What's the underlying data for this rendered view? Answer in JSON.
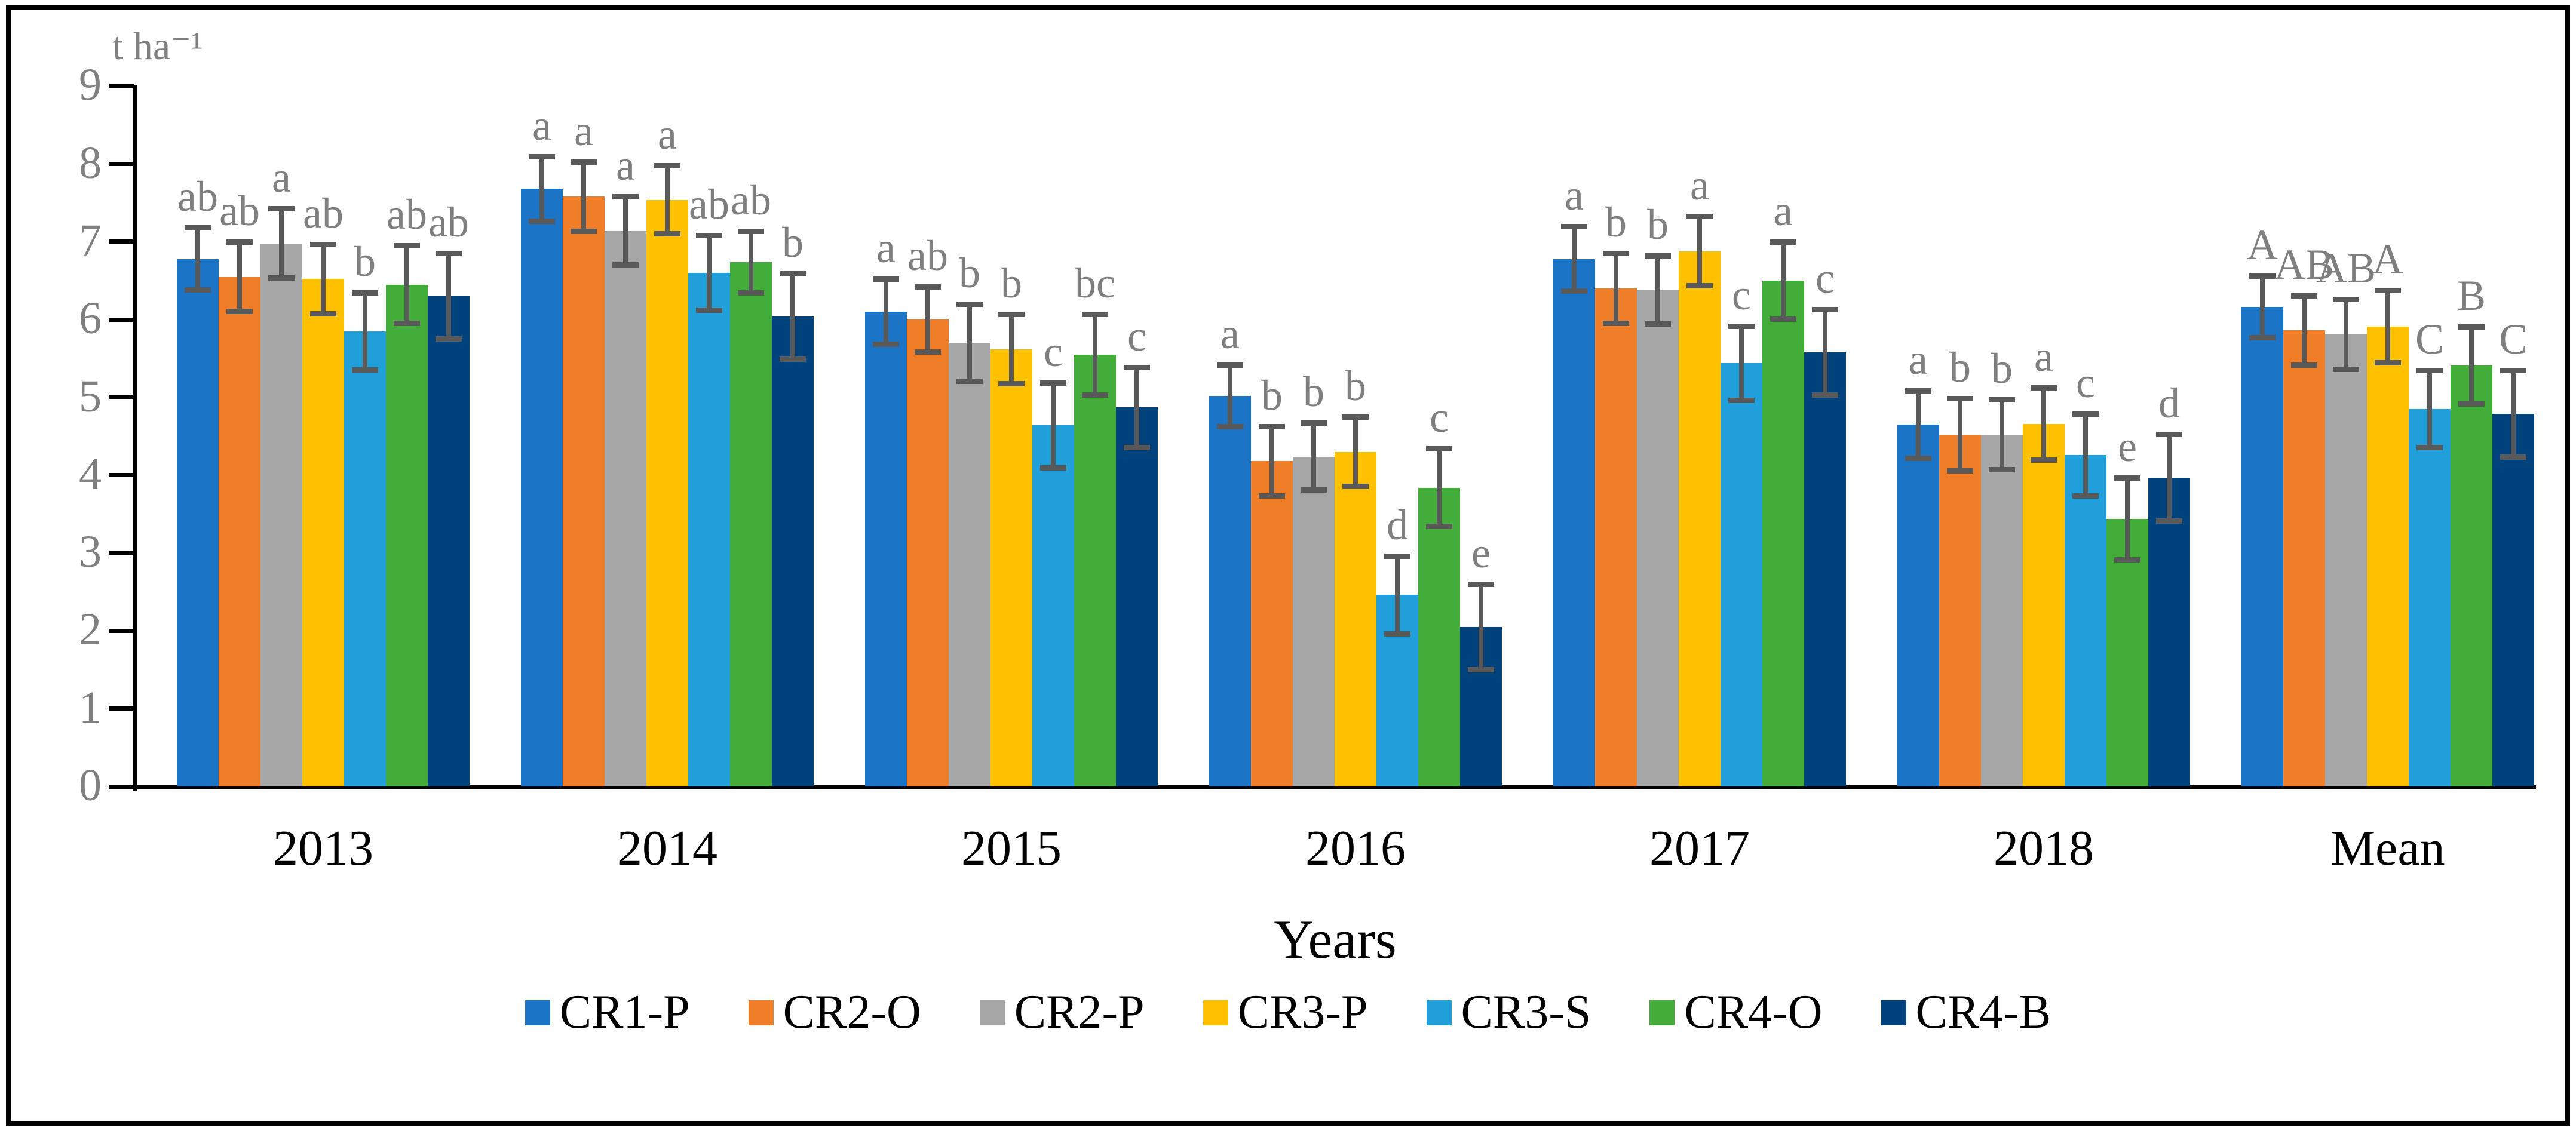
{
  "figure": {
    "y_unit_label": "t ha⁻¹",
    "x_axis_label": "Years"
  },
  "chart_data": {
    "type": "bar",
    "title": "",
    "ylabel": "t ha⁻¹",
    "xlabel": "Years",
    "ylim": [
      0,
      9
    ],
    "yticks": [
      0,
      1,
      2,
      3,
      4,
      5,
      6,
      7,
      8,
      9
    ],
    "grid": false,
    "legend_position": "bottom",
    "error_bar_color": "#595959",
    "sig_letter_color": "#7f7f7f",
    "categories": [
      "2013",
      "2014",
      "2015",
      "2016",
      "2017",
      "2018",
      "Mean"
    ],
    "series": [
      {
        "name": "CR1-P",
        "color": "#1b74c5",
        "values": [
          6.78,
          7.68,
          6.1,
          5.02,
          6.78,
          4.65,
          6.16
        ],
        "errors": [
          0.4,
          0.42,
          0.42,
          0.4,
          0.42,
          0.44,
          0.4
        ],
        "letters": [
          "ab",
          "a",
          "a",
          "a",
          "a",
          "a",
          "A"
        ]
      },
      {
        "name": "CR2-O",
        "color": "#f07d28",
        "values": [
          6.55,
          7.58,
          6.0,
          4.18,
          6.4,
          4.52,
          5.86
        ],
        "errors": [
          0.45,
          0.45,
          0.42,
          0.45,
          0.45,
          0.47,
          0.45
        ],
        "letters": [
          "ab",
          "a",
          "ab",
          "b",
          "b",
          "b",
          "AB"
        ]
      },
      {
        "name": "CR2-P",
        "color": "#a6a6a6",
        "values": [
          6.98,
          7.14,
          5.7,
          4.24,
          6.38,
          4.52,
          5.81
        ],
        "errors": [
          0.45,
          0.44,
          0.5,
          0.43,
          0.44,
          0.45,
          0.45
        ],
        "letters": [
          "a",
          "a",
          "b",
          "b",
          "b",
          "b",
          "AB"
        ]
      },
      {
        "name": "CR3-P",
        "color": "#ffc000",
        "values": [
          6.52,
          7.54,
          5.62,
          4.3,
          6.88,
          4.66,
          5.91
        ],
        "errors": [
          0.45,
          0.44,
          0.45,
          0.45,
          0.45,
          0.47,
          0.47
        ],
        "letters": [
          "ab",
          "a",
          "b",
          "b",
          "a",
          "a",
          "A"
        ]
      },
      {
        "name": "CR3-S",
        "color": "#219fda",
        "values": [
          5.85,
          6.6,
          4.64,
          2.46,
          5.44,
          4.26,
          4.85
        ],
        "errors": [
          0.5,
          0.48,
          0.55,
          0.5,
          0.48,
          0.53,
          0.5
        ],
        "letters": [
          "b",
          "ab",
          "c",
          "d",
          "c",
          "c",
          "C"
        ]
      },
      {
        "name": "CR4-O",
        "color": "#43ad3a",
        "values": [
          6.45,
          6.74,
          5.55,
          3.84,
          6.5,
          3.44,
          5.41
        ],
        "errors": [
          0.5,
          0.4,
          0.52,
          0.5,
          0.5,
          0.53,
          0.5
        ],
        "letters": [
          "ab",
          "ab",
          "bc",
          "c",
          "a",
          "e",
          "B"
        ]
      },
      {
        "name": "CR4-B",
        "color": "#00437c",
        "values": [
          6.3,
          6.04,
          4.87,
          2.05,
          5.58,
          3.97,
          4.79
        ],
        "errors": [
          0.55,
          0.55,
          0.52,
          0.55,
          0.55,
          0.56,
          0.56
        ],
        "letters": [
          "ab",
          "b",
          "c",
          "e",
          "c",
          "d",
          "C"
        ]
      }
    ]
  }
}
